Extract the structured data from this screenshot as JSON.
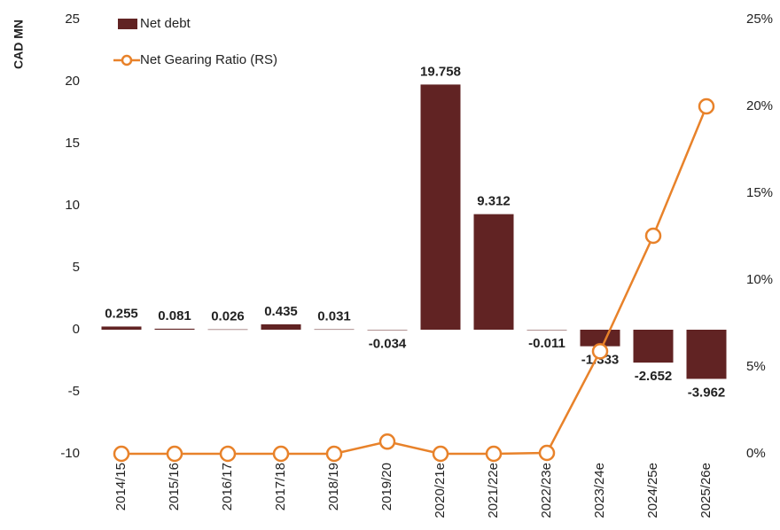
{
  "chart_data": {
    "type": "bar",
    "y_label": "CAD MN",
    "categories": [
      "2014/15",
      "2015/16",
      "2016/17",
      "2017/18",
      "2018/19",
      "2019/20",
      "2020/21e",
      "2021/22e",
      "2022/23e",
      "2023/24e",
      "2024/25e",
      "2025/26e"
    ],
    "series": [
      {
        "name": "Net debt",
        "type": "bar",
        "color": "#612323",
        "values": [
          0.255,
          0.081,
          0.026,
          0.435,
          0.031,
          -0.034,
          19.758,
          9.312,
          -0.011,
          -1.333,
          -2.652,
          -3.962
        ]
      },
      {
        "name": "Net Gearing Ratio (RS)",
        "type": "line",
        "axis": "y2",
        "color": "#e8822a",
        "values": [
          0,
          0,
          0,
          0,
          0,
          0.7,
          0,
          0,
          0.05,
          5.9,
          12.55,
          20
        ]
      }
    ],
    "ylim": [
      -10,
      25
    ],
    "yticks": [
      -10,
      -5,
      0,
      5,
      10,
      15,
      20,
      25
    ],
    "y2lim": [
      0,
      25
    ],
    "y2ticks": [
      {
        "value": 0,
        "label": "0%"
      },
      {
        "value": 5,
        "label": "5%"
      },
      {
        "value": 10,
        "label": "10%"
      },
      {
        "value": 15,
        "label": "15%"
      },
      {
        "value": 20,
        "label": "20%"
      },
      {
        "value": 25,
        "label": "25%"
      }
    ],
    "grid": false,
    "legend": "top-left"
  }
}
